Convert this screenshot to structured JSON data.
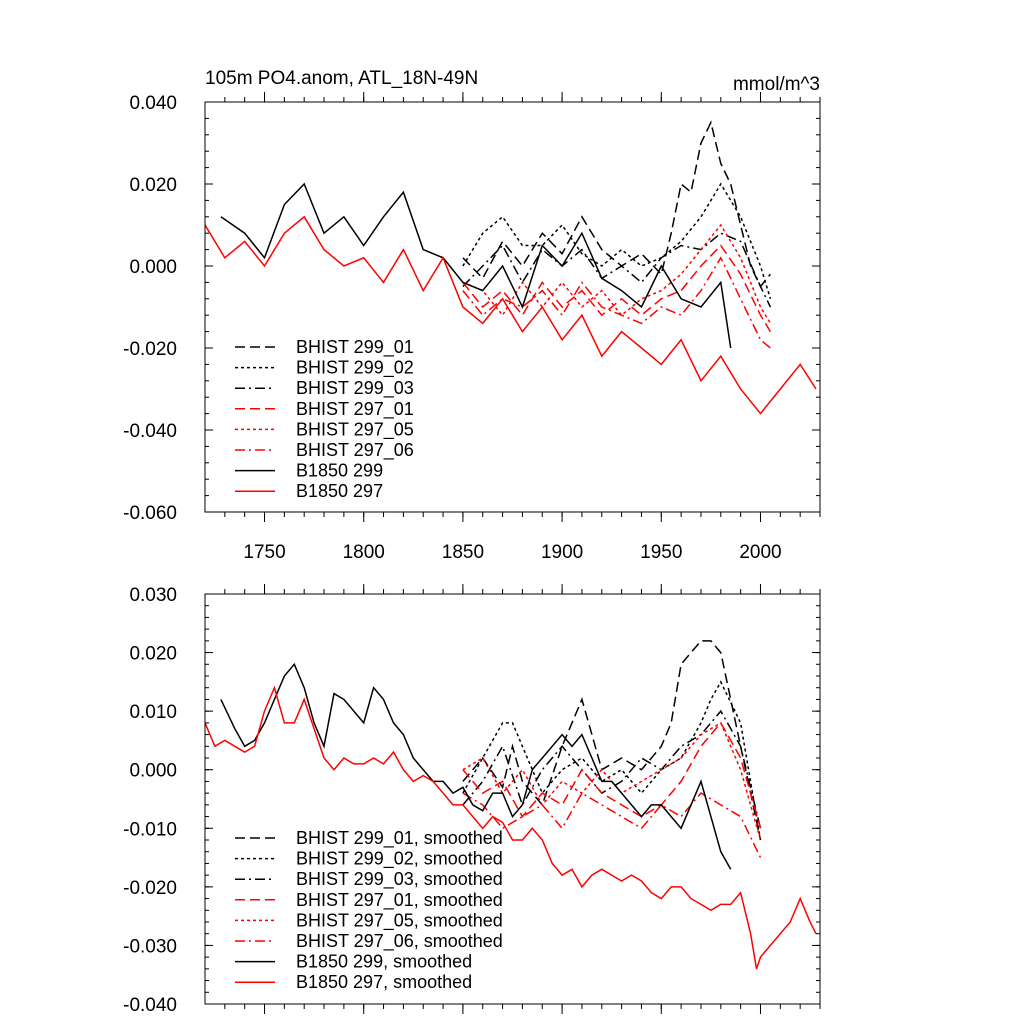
{
  "chart_data": [
    {
      "type": "line",
      "title": "105m PO4.anom, ATL_18N-49N",
      "units": "mmol/m^3",
      "xlim": [
        1720,
        2030
      ],
      "ylim": [
        -0.06,
        0.04
      ],
      "x_ticks": [
        1750,
        1800,
        1850,
        1900,
        1950,
        2000
      ],
      "x_tick_labels": [
        "1750",
        "1800",
        "1850",
        "1900",
        "1950",
        "2000"
      ],
      "y_ticks": [
        -0.06,
        -0.04,
        -0.02,
        0.0,
        0.02,
        0.04
      ],
      "y_tick_labels": [
        "-0.060",
        "-0.040",
        "-0.020",
        "0.000",
        "0.020",
        "0.040"
      ],
      "legend_position": "bottom-left",
      "series": [
        {
          "name": "BHIST 299_01",
          "color": "#000000",
          "dash": "dashed",
          "x": [
            1850,
            1860,
            1870,
            1880,
            1890,
            1900,
            1910,
            1920,
            1930,
            1940,
            1950,
            1955,
            1960,
            1965,
            1970,
            1975,
            1980,
            1985,
            1990,
            1995,
            2000,
            2005
          ],
          "y": [
            0.002,
            -0.003,
            0.006,
            0.0,
            0.008,
            0.003,
            0.012,
            0.004,
            0.0,
            0.003,
            -0.002,
            0.008,
            0.02,
            0.018,
            0.03,
            0.035,
            0.025,
            0.02,
            0.01,
            0.0,
            -0.005,
            -0.002
          ]
        },
        {
          "name": "BHIST 299_02",
          "color": "#000000",
          "dash": "dotted",
          "x": [
            1850,
            1860,
            1870,
            1880,
            1890,
            1900,
            1910,
            1920,
            1930,
            1940,
            1950,
            1960,
            1970,
            1980,
            1990,
            2000,
            2005
          ],
          "y": [
            0.0,
            0.008,
            0.012,
            0.005,
            0.005,
            0.01,
            0.003,
            0.0,
            0.004,
            0.0,
            0.002,
            0.006,
            0.012,
            0.02,
            0.012,
            0.0,
            -0.008
          ]
        },
        {
          "name": "BHIST 299_03",
          "color": "#000000",
          "dash": "dashdot",
          "x": [
            1850,
            1860,
            1870,
            1880,
            1890,
            1900,
            1910,
            1920,
            1930,
            1940,
            1950,
            1960,
            1970,
            1980,
            1990,
            2000,
            2005
          ],
          "y": [
            -0.005,
            0.0,
            0.005,
            -0.004,
            0.004,
            0.0,
            0.004,
            -0.003,
            0.0,
            -0.004,
            0.002,
            0.005,
            0.004,
            0.008,
            0.006,
            -0.005,
            -0.01
          ]
        },
        {
          "name": "BHIST 297_01",
          "color": "#ff0000",
          "dash": "dashed",
          "x": [
            1850,
            1860,
            1870,
            1880,
            1890,
            1900,
            1910,
            1920,
            1930,
            1940,
            1950,
            1960,
            1970,
            1980,
            1990,
            2000,
            2005
          ],
          "y": [
            -0.004,
            -0.01,
            -0.006,
            -0.012,
            -0.004,
            -0.01,
            -0.006,
            -0.012,
            -0.008,
            -0.012,
            -0.008,
            -0.006,
            0.0,
            0.005,
            -0.002,
            -0.012,
            -0.016
          ]
        },
        {
          "name": "BHIST 297_05",
          "color": "#ff0000",
          "dash": "dotted",
          "x": [
            1850,
            1860,
            1870,
            1880,
            1890,
            1900,
            1910,
            1920,
            1930,
            1940,
            1950,
            1960,
            1970,
            1980,
            1990,
            2000,
            2005
          ],
          "y": [
            -0.004,
            -0.006,
            -0.012,
            -0.004,
            -0.01,
            -0.004,
            -0.01,
            -0.006,
            -0.012,
            -0.008,
            -0.006,
            -0.002,
            0.004,
            0.01,
            0.002,
            -0.01,
            -0.014
          ]
        },
        {
          "name": "BHIST 297_06",
          "color": "#ff0000",
          "dash": "dashdot",
          "x": [
            1850,
            1860,
            1870,
            1880,
            1890,
            1900,
            1910,
            1920,
            1930,
            1940,
            1950,
            1960,
            1970,
            1980,
            1990,
            2000,
            2005
          ],
          "y": [
            -0.006,
            -0.012,
            -0.008,
            -0.01,
            -0.006,
            -0.012,
            -0.004,
            -0.01,
            -0.012,
            -0.014,
            -0.01,
            -0.012,
            -0.006,
            0.002,
            -0.008,
            -0.018,
            -0.02
          ]
        },
        {
          "name": "B1850 299",
          "color": "#000000",
          "dash": "solid",
          "x": [
            1728,
            1740,
            1750,
            1760,
            1770,
            1780,
            1790,
            1800,
            1810,
            1820,
            1830,
            1840,
            1850,
            1860,
            1870,
            1880,
            1890,
            1900,
            1910,
            1920,
            1930,
            1940,
            1950,
            1960,
            1970,
            1980,
            1985
          ],
          "y": [
            0.012,
            0.008,
            0.002,
            0.015,
            0.02,
            0.008,
            0.012,
            0.005,
            0.012,
            0.018,
            0.004,
            0.002,
            -0.004,
            -0.006,
            0.0,
            -0.01,
            0.005,
            0.0,
            0.008,
            -0.003,
            -0.006,
            -0.01,
            0.0,
            -0.008,
            -0.01,
            -0.004,
            -0.02
          ]
        },
        {
          "name": "B1850 297",
          "color": "#ff0000",
          "dash": "solid",
          "x": [
            1720,
            1730,
            1740,
            1750,
            1760,
            1770,
            1780,
            1790,
            1800,
            1810,
            1820,
            1830,
            1840,
            1850,
            1860,
            1870,
            1880,
            1890,
            1900,
            1910,
            1920,
            1930,
            1940,
            1950,
            1960,
            1970,
            1980,
            1990,
            2000,
            2010,
            2020,
            2028
          ],
          "y": [
            0.01,
            0.002,
            0.006,
            0.0,
            0.008,
            0.012,
            0.004,
            0.0,
            0.002,
            -0.004,
            0.004,
            -0.006,
            0.002,
            -0.01,
            -0.014,
            -0.008,
            -0.016,
            -0.01,
            -0.018,
            -0.012,
            -0.022,
            -0.016,
            -0.02,
            -0.024,
            -0.018,
            -0.028,
            -0.022,
            -0.03,
            -0.036,
            -0.03,
            -0.024,
            -0.03
          ]
        }
      ],
      "legend": [
        "BHIST 299_01",
        "BHIST 299_02",
        "BHIST 299_03",
        "BHIST 297_01",
        "BHIST 297_05",
        "BHIST 297_06",
        "B1850 299",
        "B1850 297"
      ]
    },
    {
      "type": "line",
      "title": "",
      "xlim": [
        1720,
        2030
      ],
      "ylim": [
        -0.04,
        0.03
      ],
      "y_ticks": [
        -0.04,
        -0.03,
        -0.02,
        -0.01,
        0.0,
        0.01,
        0.02,
        0.03
      ],
      "y_tick_labels": [
        "-0.040",
        "-0.030",
        "-0.020",
        "-0.010",
        "0.000",
        "0.010",
        "0.020",
        "0.030"
      ],
      "legend_position": "bottom-left",
      "series": [
        {
          "name": "BHIST 299_01, smoothed",
          "color": "#000000",
          "dash": "dashed",
          "x": [
            1850,
            1860,
            1870,
            1875,
            1880,
            1890,
            1900,
            1905,
            1910,
            1915,
            1920,
            1930,
            1940,
            1950,
            1955,
            1960,
            1965,
            1970,
            1975,
            1980,
            1985,
            1990,
            1995,
            2000
          ],
          "y": [
            -0.002,
            0.002,
            -0.003,
            0.004,
            -0.002,
            -0.006,
            0.004,
            0.008,
            0.012,
            0.006,
            0.0,
            0.002,
            0.0,
            0.004,
            0.008,
            0.018,
            0.02,
            0.022,
            0.022,
            0.02,
            0.012,
            0.004,
            -0.004,
            -0.012
          ]
        },
        {
          "name": "BHIST 299_02, smoothed",
          "color": "#000000",
          "dash": "dotted",
          "x": [
            1850,
            1860,
            1870,
            1875,
            1880,
            1890,
            1900,
            1910,
            1920,
            1930,
            1940,
            1950,
            1960,
            1970,
            1975,
            1980,
            1990,
            2000
          ],
          "y": [
            -0.004,
            0.002,
            0.008,
            0.008,
            0.004,
            -0.004,
            0.0,
            0.002,
            -0.002,
            0.0,
            -0.004,
            0.0,
            0.002,
            0.008,
            0.012,
            0.015,
            0.008,
            -0.012
          ]
        },
        {
          "name": "BHIST 299_03, smoothed",
          "color": "#000000",
          "dash": "dashdot",
          "x": [
            1850,
            1860,
            1870,
            1880,
            1890,
            1900,
            1910,
            1920,
            1930,
            1940,
            1950,
            1960,
            1970,
            1980,
            1990,
            2000
          ],
          "y": [
            -0.006,
            -0.002,
            0.004,
            -0.006,
            0.0,
            0.004,
            0.0,
            -0.004,
            -0.002,
            0.002,
            0.0,
            0.004,
            0.006,
            0.01,
            0.004,
            -0.01
          ]
        },
        {
          "name": "BHIST 297_01, smoothed",
          "color": "#ff0000",
          "dash": "dashed",
          "x": [
            1850,
            1860,
            1870,
            1880,
            1890,
            1900,
            1910,
            1920,
            1930,
            1940,
            1950,
            1960,
            1970,
            1980,
            1990,
            2000
          ],
          "y": [
            0.0,
            -0.004,
            -0.002,
            -0.008,
            -0.004,
            -0.006,
            0.0,
            -0.004,
            -0.006,
            -0.008,
            -0.006,
            -0.002,
            0.004,
            0.008,
            0.002,
            -0.01
          ]
        },
        {
          "name": "BHIST 297_05, smoothed",
          "color": "#ff0000",
          "dash": "dotted",
          "x": [
            1850,
            1860,
            1870,
            1880,
            1890,
            1900,
            1910,
            1920,
            1930,
            1940,
            1950,
            1960,
            1970,
            1980,
            1990,
            2000
          ],
          "y": [
            0.0,
            0.002,
            -0.004,
            0.0,
            -0.006,
            -0.002,
            -0.004,
            0.0,
            -0.004,
            -0.002,
            0.0,
            0.002,
            0.006,
            0.008,
            0.0,
            -0.012
          ]
        },
        {
          "name": "BHIST 297_06, smoothed",
          "color": "#ff0000",
          "dash": "dashdot",
          "x": [
            1850,
            1860,
            1870,
            1880,
            1890,
            1900,
            1910,
            1920,
            1930,
            1940,
            1950,
            1960,
            1970,
            1980,
            1990,
            2000
          ],
          "y": [
            -0.004,
            -0.006,
            -0.01,
            -0.008,
            -0.006,
            -0.01,
            -0.004,
            -0.006,
            -0.008,
            -0.01,
            -0.006,
            -0.008,
            -0.004,
            -0.006,
            -0.008,
            -0.015
          ]
        },
        {
          "name": "B1850 299, smoothed",
          "color": "#000000",
          "dash": "solid",
          "x": [
            1728,
            1735,
            1740,
            1745,
            1750,
            1755,
            1760,
            1765,
            1770,
            1775,
            1780,
            1785,
            1790,
            1795,
            1800,
            1805,
            1810,
            1815,
            1820,
            1825,
            1830,
            1835,
            1840,
            1845,
            1850,
            1855,
            1860,
            1865,
            1870,
            1875,
            1880,
            1885,
            1890,
            1895,
            1900,
            1905,
            1910,
            1915,
            1920,
            1925,
            1930,
            1935,
            1940,
            1945,
            1950,
            1955,
            1960,
            1965,
            1970,
            1975,
            1980,
            1985
          ],
          "y": [
            0.012,
            0.007,
            0.004,
            0.005,
            0.008,
            0.012,
            0.016,
            0.018,
            0.014,
            0.008,
            0.004,
            0.013,
            0.012,
            0.01,
            0.008,
            0.014,
            0.012,
            0.008,
            0.006,
            0.002,
            0.0,
            -0.002,
            -0.002,
            -0.004,
            -0.003,
            -0.006,
            -0.007,
            -0.004,
            -0.004,
            -0.008,
            -0.006,
            0.0,
            0.002,
            0.004,
            0.006,
            0.004,
            0.006,
            0.002,
            -0.002,
            -0.002,
            -0.004,
            -0.006,
            -0.008,
            -0.006,
            -0.006,
            -0.008,
            -0.01,
            -0.006,
            -0.002,
            -0.008,
            -0.014,
            -0.017
          ]
        },
        {
          "name": "B1850 297, smoothed",
          "color": "#ff0000",
          "dash": "solid",
          "x": [
            1720,
            1725,
            1730,
            1735,
            1740,
            1745,
            1750,
            1755,
            1760,
            1765,
            1770,
            1775,
            1780,
            1785,
            1790,
            1795,
            1800,
            1805,
            1810,
            1815,
            1820,
            1825,
            1830,
            1835,
            1840,
            1845,
            1850,
            1855,
            1860,
            1865,
            1870,
            1875,
            1880,
            1885,
            1890,
            1895,
            1900,
            1905,
            1910,
            1915,
            1920,
            1925,
            1930,
            1935,
            1940,
            1945,
            1950,
            1955,
            1960,
            1965,
            1970,
            1975,
            1980,
            1985,
            1990,
            1995,
            1998,
            2000,
            2005,
            2010,
            2015,
            2020,
            2025,
            2028
          ],
          "y": [
            0.008,
            0.004,
            0.005,
            0.004,
            0.003,
            0.004,
            0.01,
            0.014,
            0.008,
            0.008,
            0.012,
            0.007,
            0.002,
            0.0,
            0.002,
            0.001,
            0.001,
            0.002,
            0.001,
            0.003,
            0.0,
            -0.002,
            -0.001,
            -0.002,
            -0.004,
            -0.006,
            -0.006,
            -0.008,
            -0.01,
            -0.008,
            -0.009,
            -0.012,
            -0.012,
            -0.01,
            -0.012,
            -0.016,
            -0.018,
            -0.017,
            -0.02,
            -0.018,
            -0.017,
            -0.018,
            -0.019,
            -0.018,
            -0.019,
            -0.021,
            -0.022,
            -0.02,
            -0.02,
            -0.022,
            -0.023,
            -0.024,
            -0.023,
            -0.023,
            -0.021,
            -0.028,
            -0.034,
            -0.032,
            -0.03,
            -0.028,
            -0.026,
            -0.022,
            -0.026,
            -0.028
          ]
        }
      ],
      "legend": [
        "BHIST 299_01, smoothed",
        "BHIST 299_02, smoothed",
        "BHIST 299_03, smoothed",
        "BHIST 297_01, smoothed",
        "BHIST 297_05, smoothed",
        "BHIST 297_06, smoothed",
        "B1850 299, smoothed",
        "B1850 297, smoothed"
      ]
    }
  ]
}
